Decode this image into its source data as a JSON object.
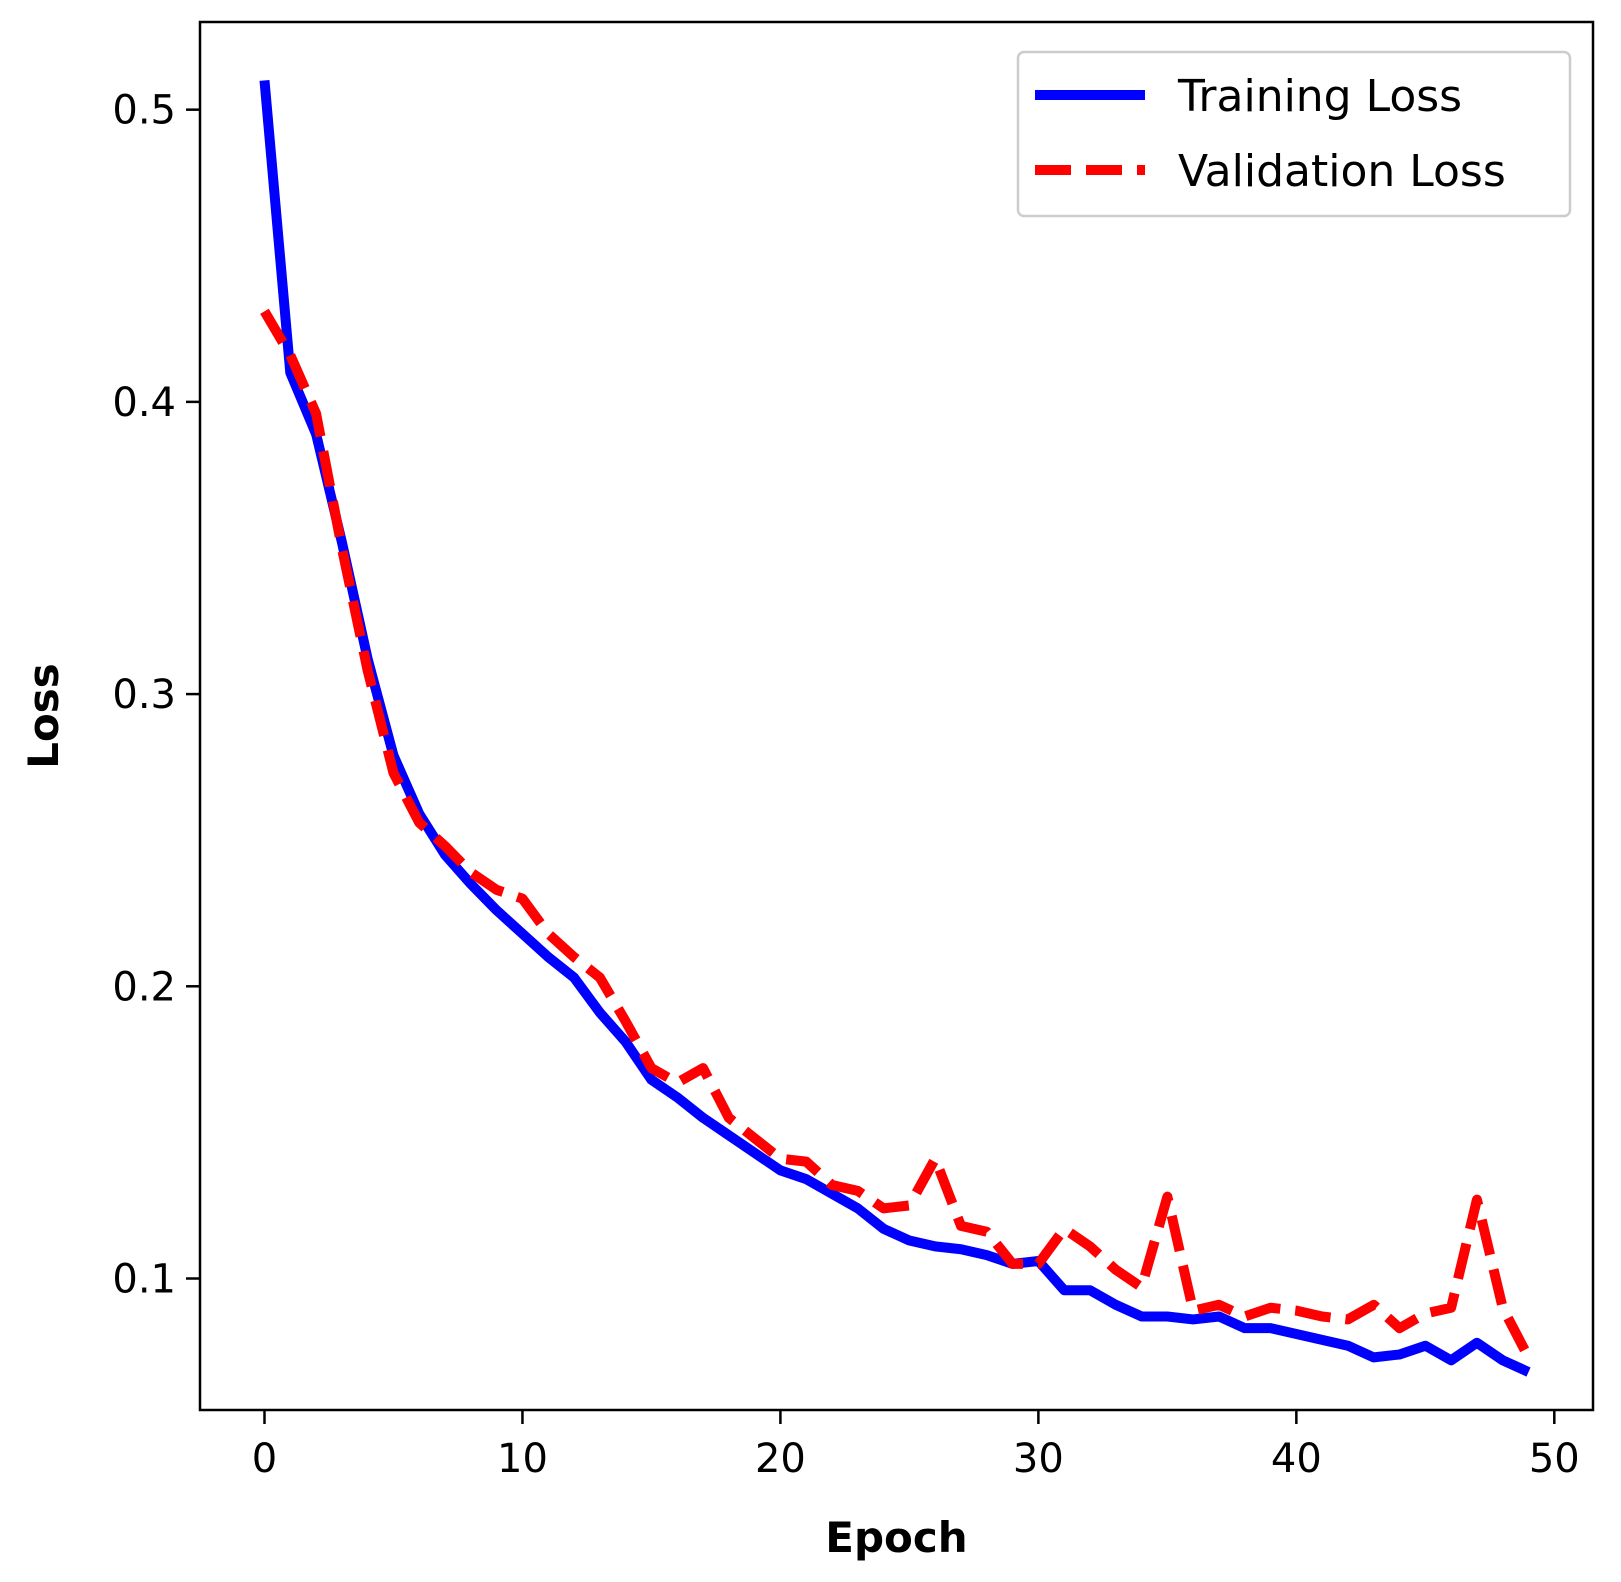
{
  "chart_data": {
    "type": "line",
    "title": "",
    "xlabel": "Epoch",
    "ylabel": "Loss",
    "xlim": [
      -2.5,
      51.5
    ],
    "ylim": [
      0.055,
      0.53
    ],
    "xticks": [
      0,
      10,
      20,
      30,
      40,
      50
    ],
    "xtick_labels": [
      "0",
      "10",
      "20",
      "30",
      "40",
      "50"
    ],
    "yticks": [
      0.1,
      0.2,
      0.3,
      0.4,
      0.5
    ],
    "ytick_labels": [
      "0.1",
      "0.2",
      "0.3",
      "0.4",
      "0.5"
    ],
    "grid": false,
    "legend_position": "top-right",
    "x": [
      0,
      1,
      2,
      3,
      4,
      5,
      6,
      7,
      8,
      9,
      10,
      11,
      12,
      13,
      14,
      15,
      16,
      17,
      18,
      19,
      20,
      21,
      22,
      23,
      24,
      25,
      26,
      27,
      28,
      29,
      30,
      31,
      32,
      33,
      34,
      35,
      36,
      37,
      38,
      39,
      40,
      41,
      42,
      43,
      44,
      45,
      46,
      47,
      48,
      49
    ],
    "series": [
      {
        "name": "Training Loss",
        "color": "#0000ff",
        "style": "solid",
        "values": [
          0.51,
          0.41,
          0.389,
          0.352,
          0.312,
          0.279,
          0.259,
          0.245,
          0.235,
          0.226,
          0.218,
          0.21,
          0.203,
          0.191,
          0.181,
          0.168,
          0.162,
          0.155,
          0.149,
          0.143,
          0.137,
          0.134,
          0.129,
          0.124,
          0.117,
          0.113,
          0.111,
          0.11,
          0.108,
          0.105,
          0.106,
          0.096,
          0.096,
          0.091,
          0.087,
          0.087,
          0.086,
          0.087,
          0.083,
          0.083,
          0.081,
          0.079,
          0.077,
          0.073,
          0.074,
          0.077,
          0.072,
          0.078,
          0.072,
          0.068
        ]
      },
      {
        "name": "Validation Loss",
        "color": "#ff0000",
        "style": "dashed",
        "values": [
          0.431,
          0.416,
          0.396,
          0.35,
          0.308,
          0.273,
          0.256,
          0.248,
          0.239,
          0.233,
          0.23,
          0.218,
          0.21,
          0.203,
          0.188,
          0.172,
          0.167,
          0.172,
          0.155,
          0.148,
          0.141,
          0.14,
          0.132,
          0.13,
          0.124,
          0.125,
          0.141,
          0.118,
          0.116,
          0.105,
          0.105,
          0.117,
          0.111,
          0.103,
          0.097,
          0.128,
          0.089,
          0.091,
          0.087,
          0.09,
          0.089,
          0.087,
          0.086,
          0.091,
          0.083,
          0.088,
          0.09,
          0.127,
          0.09,
          0.073
        ]
      }
    ]
  }
}
